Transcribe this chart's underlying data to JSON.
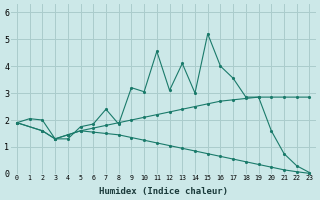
{
  "xlabel": "Humidex (Indice chaleur)",
  "background_color": "#cce8e8",
  "grid_color": "#aacccc",
  "line_color": "#1a7a6a",
  "xlim": [
    -0.5,
    23.5
  ],
  "ylim": [
    0,
    6.3
  ],
  "yticks": [
    0,
    1,
    2,
    3,
    4,
    5,
    6
  ],
  "xtick_labels": [
    "0",
    "1",
    "2",
    "3",
    "4",
    "5",
    "6",
    "7",
    "8",
    "9",
    "10",
    "11",
    "12",
    "13",
    "14",
    "15",
    "16",
    "17",
    "18",
    "19",
    "20",
    "21",
    "22",
    "23"
  ],
  "line1_x": [
    0,
    1,
    2,
    3,
    4,
    5,
    6,
    7,
    8,
    9,
    10,
    11,
    12,
    13,
    14,
    15,
    16,
    17,
    18,
    19,
    20,
    21,
    22,
    23
  ],
  "line1_y": [
    1.9,
    2.05,
    2.0,
    1.3,
    1.3,
    1.75,
    1.85,
    2.4,
    1.85,
    3.2,
    3.05,
    4.55,
    3.1,
    4.1,
    3.0,
    5.2,
    4.0,
    3.55,
    2.85,
    2.85,
    1.6,
    0.75,
    0.3,
    0.05
  ],
  "line2_x": [
    0,
    2,
    3,
    4,
    5,
    6,
    7,
    8,
    9,
    10,
    11,
    12,
    13,
    14,
    15,
    16,
    17,
    18,
    19,
    20,
    21,
    22,
    23
  ],
  "line2_y": [
    1.9,
    1.6,
    1.3,
    1.45,
    1.6,
    1.7,
    1.8,
    1.9,
    2.0,
    2.1,
    2.2,
    2.3,
    2.4,
    2.5,
    2.6,
    2.7,
    2.75,
    2.8,
    2.85,
    2.85,
    2.85,
    2.85,
    2.85
  ],
  "line3_x": [
    0,
    2,
    3,
    4,
    5,
    6,
    7,
    8,
    9,
    10,
    11,
    12,
    13,
    14,
    15,
    16,
    17,
    18,
    19,
    20,
    21,
    22,
    23
  ],
  "line3_y": [
    1.9,
    1.6,
    1.3,
    1.45,
    1.6,
    1.55,
    1.5,
    1.45,
    1.35,
    1.25,
    1.15,
    1.05,
    0.95,
    0.85,
    0.75,
    0.65,
    0.55,
    0.45,
    0.35,
    0.25,
    0.15,
    0.08,
    0.02
  ]
}
